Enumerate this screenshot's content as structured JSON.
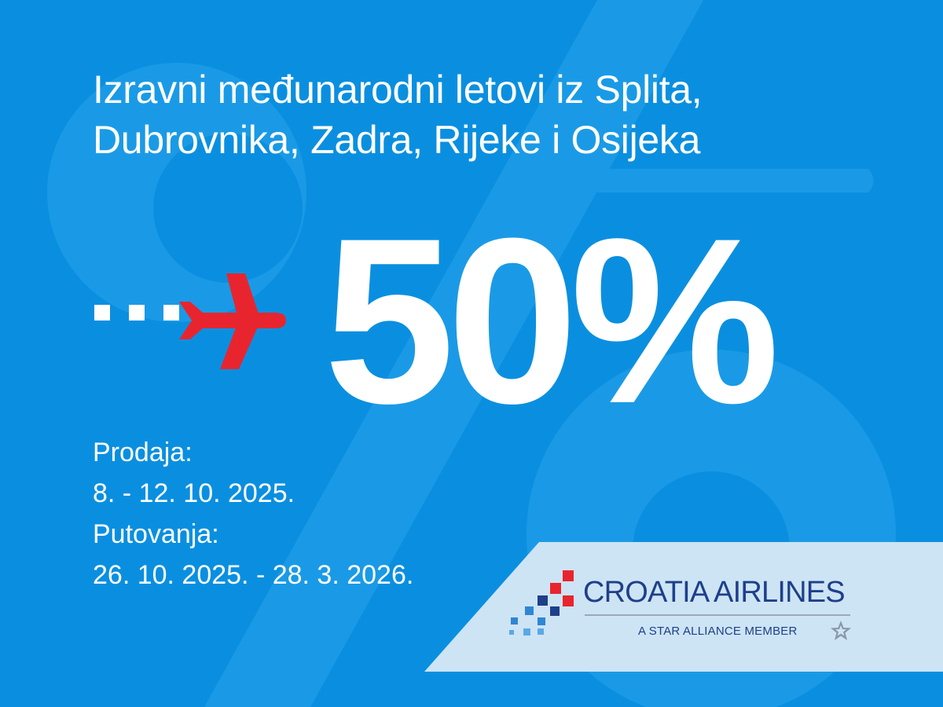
{
  "headline": {
    "line1": "Izravni međunarodni letovi iz Splita,",
    "line2": "Dubrovnika, Zadra, Rijeke i Osijeka"
  },
  "promo": {
    "discount": "50%",
    "icon": "plane-icon"
  },
  "sale": {
    "label": "Prodaja:",
    "dates": "8. - 12. 10. 2025."
  },
  "travel": {
    "label": "Putovanja:",
    "dates": "26. 10. 2025. - 28. 3. 2026."
  },
  "brand": {
    "name": "CROATIA AIRLINES",
    "tagline": "A STAR ALLIANCE MEMBER",
    "icon": "star-alliance-icon"
  },
  "colors": {
    "background": "#0a8fe0",
    "plane": "#e8252e",
    "brand": "#1e3f8a",
    "text": "#ffffff"
  }
}
